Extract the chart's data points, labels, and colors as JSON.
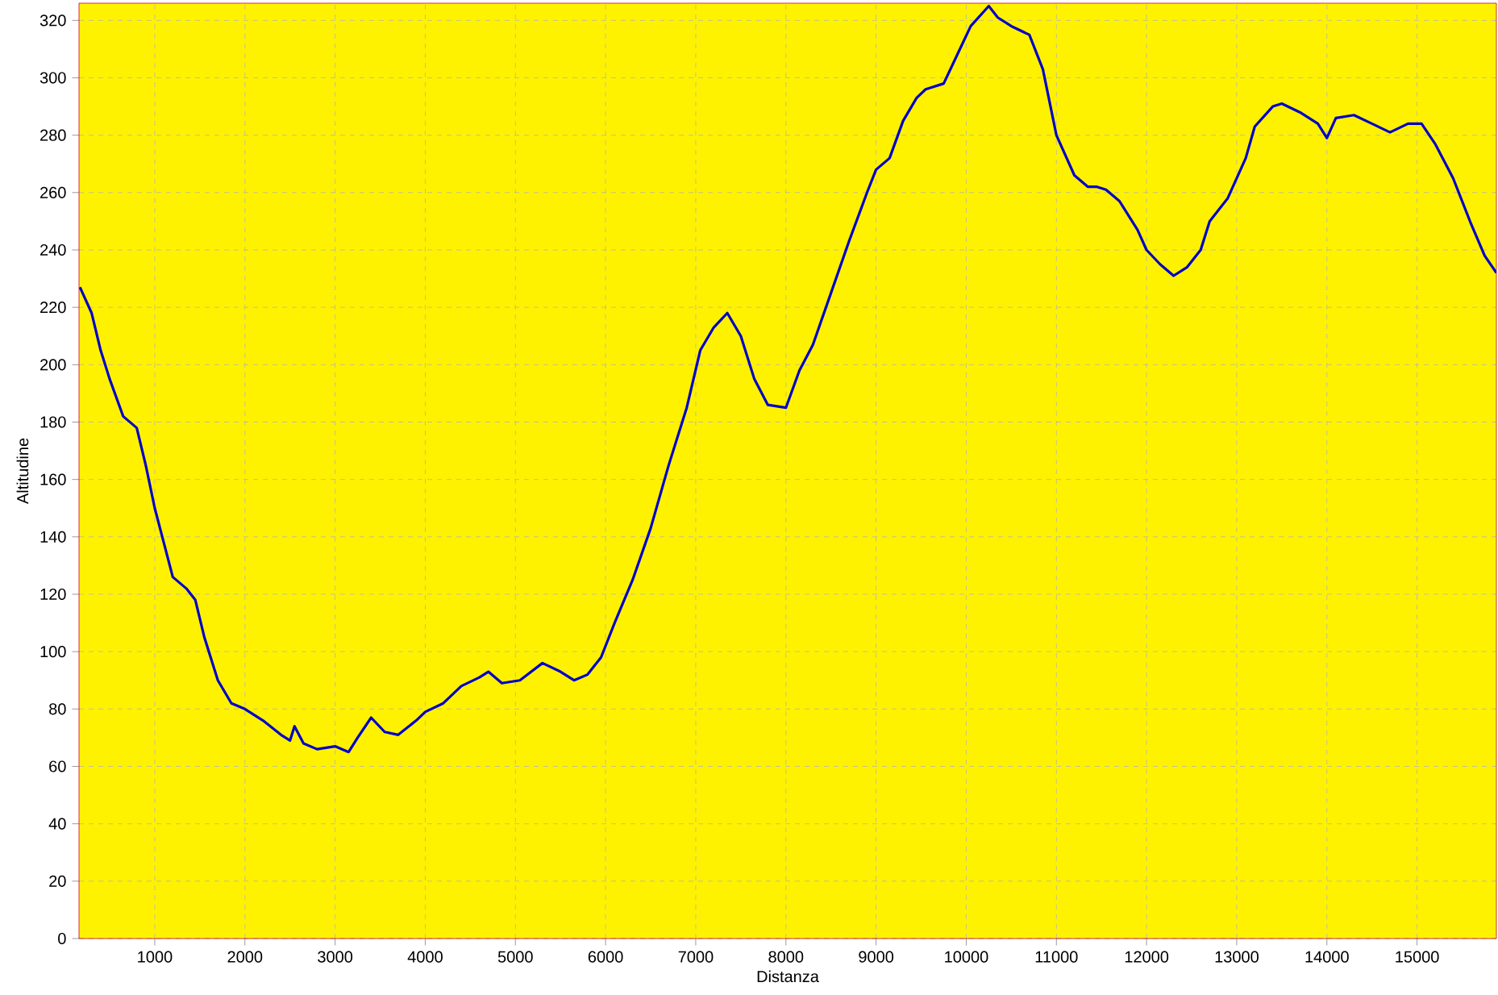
{
  "chart_data": {
    "type": "line",
    "xlabel": "Distanza",
    "ylabel": "Altitudine",
    "x": [
      170,
      300,
      400,
      500,
      650,
      800,
      900,
      1000,
      1100,
      1200,
      1350,
      1450,
      1550,
      1700,
      1850,
      2000,
      2200,
      2400,
      2500,
      2550,
      2650,
      2800,
      3000,
      3150,
      3250,
      3400,
      3550,
      3700,
      3900,
      4000,
      4200,
      4400,
      4600,
      4700,
      4850,
      5050,
      5300,
      5500,
      5650,
      5800,
      5950,
      6100,
      6300,
      6500,
      6700,
      6900,
      7050,
      7200,
      7350,
      7500,
      7650,
      7800,
      8000,
      8150,
      8300,
      8500,
      8700,
      8900,
      9000,
      9150,
      9300,
      9450,
      9550,
      9750,
      9900,
      10050,
      10250,
      10350,
      10500,
      10700,
      10850,
      11000,
      11200,
      11350,
      11450,
      11550,
      11700,
      11900,
      12000,
      12150,
      12300,
      12450,
      12600,
      12700,
      12900,
      13100,
      13200,
      13400,
      13500,
      13700,
      13900,
      14000,
      14100,
      14300,
      14500,
      14700,
      14900,
      15050,
      15200,
      15400,
      15600,
      15750,
      15880
    ],
    "series": [
      {
        "color": "#0000c8",
        "values": [
          227,
          218,
          205,
          195,
          182,
          178,
          165,
          150,
          138,
          126,
          122,
          118,
          105,
          90,
          82,
          80,
          76,
          71,
          69,
          74,
          68,
          66,
          67,
          65,
          70,
          77,
          72,
          71,
          76,
          79,
          82,
          88,
          91,
          93,
          89,
          90,
          96,
          93,
          90,
          92,
          98,
          110,
          125,
          143,
          165,
          185,
          205,
          213,
          218,
          210,
          195,
          186,
          185,
          198,
          207,
          225,
          243,
          260,
          268,
          272,
          285,
          293,
          296,
          298,
          308,
          318,
          325,
          321,
          318,
          315,
          303,
          280,
          266,
          262,
          262,
          261,
          257,
          247,
          240,
          235,
          231,
          234,
          240,
          250,
          258,
          272,
          283,
          290,
          291,
          288,
          284,
          279,
          286,
          287,
          284,
          281,
          284,
          284,
          277,
          265,
          249,
          238,
          232
        ]
      }
    ],
    "xlim": [
      160,
      15880
    ],
    "ylim": [
      0,
      326
    ],
    "xticks": [
      1000,
      2000,
      3000,
      4000,
      5000,
      6000,
      7000,
      8000,
      9000,
      10000,
      11000,
      12000,
      13000,
      14000,
      15000
    ],
    "yticks": [
      0,
      20,
      40,
      60,
      80,
      100,
      120,
      140,
      160,
      180,
      200,
      220,
      240,
      260,
      280,
      300,
      320
    ],
    "grid": true
  }
}
